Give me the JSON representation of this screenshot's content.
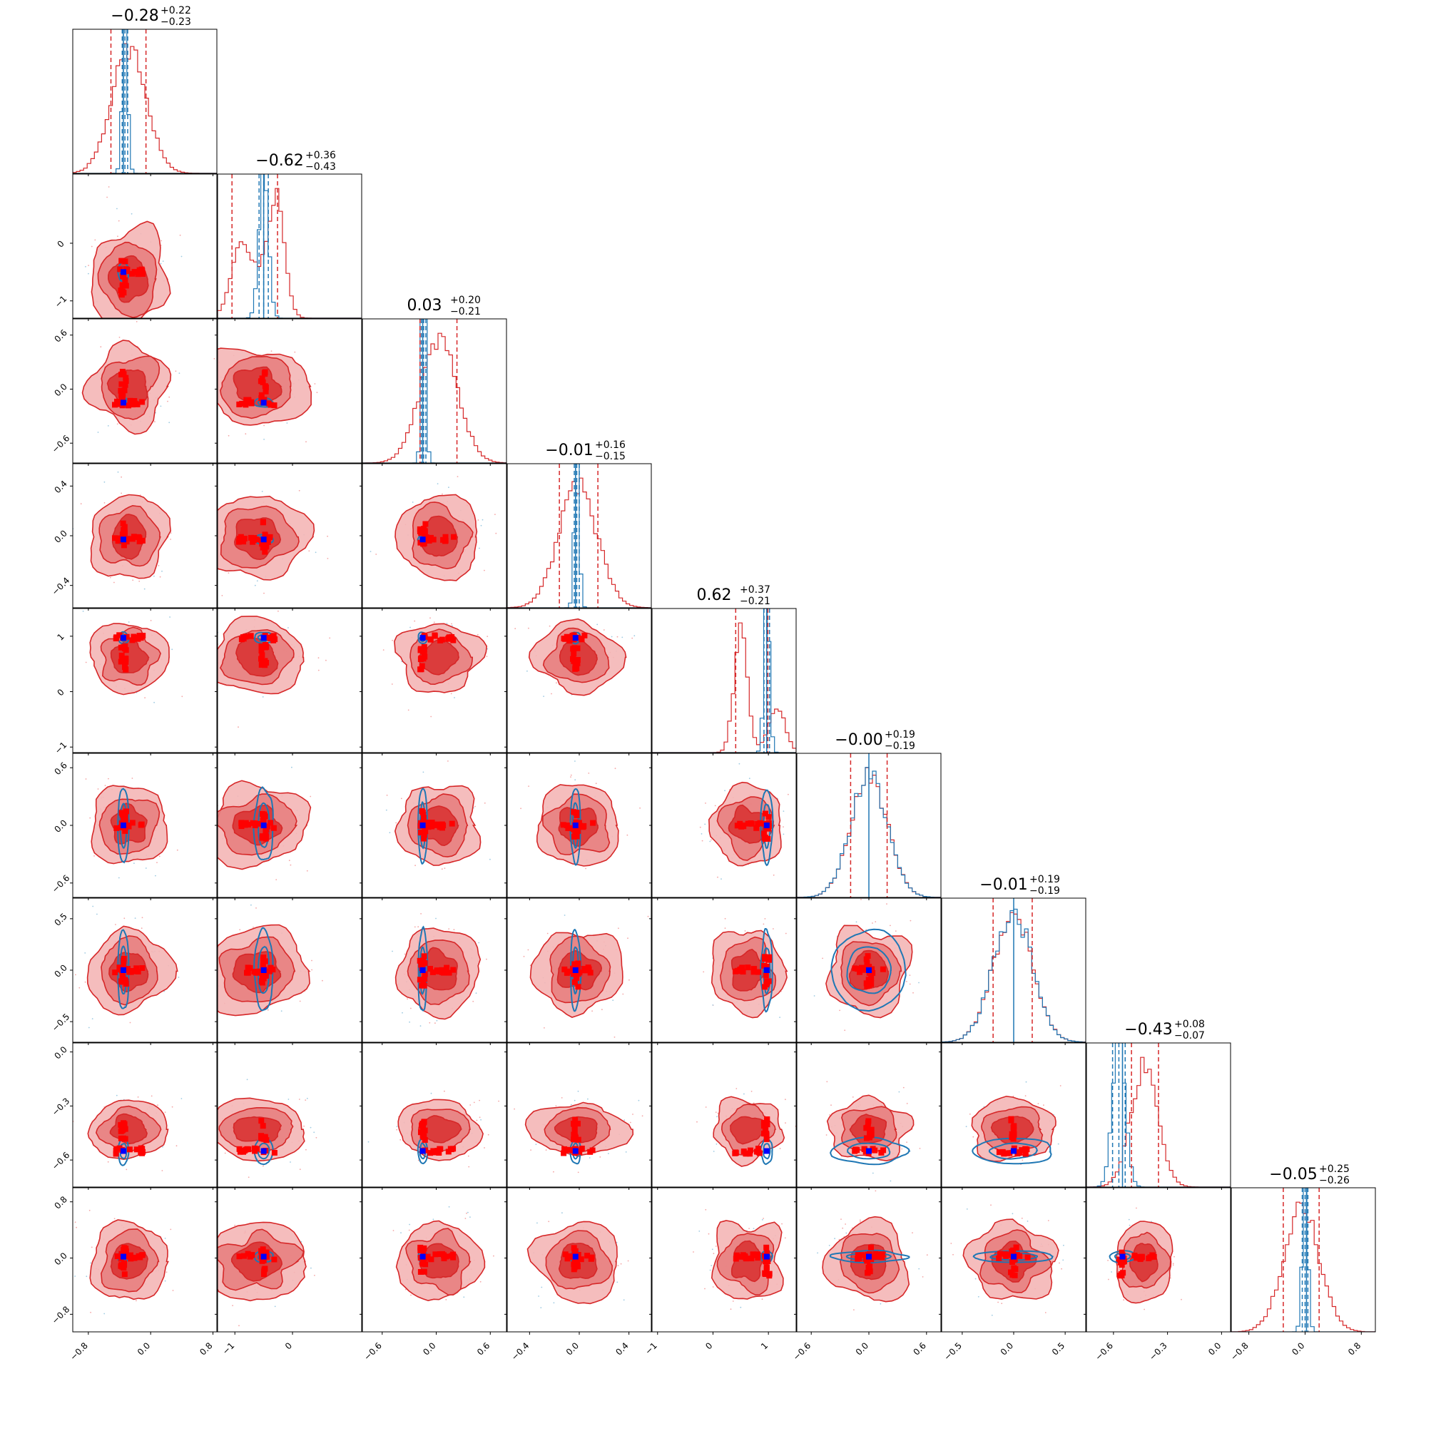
{
  "chart_data": {
    "type": "corner",
    "ndim": 9,
    "colors": {
      "wide": "#d62728",
      "narrow": "#1f77b4",
      "scatter_marker": "#ff0000",
      "truth_marker": "#0000ff"
    },
    "parameters": [
      {
        "title_main": "−0.28",
        "title_plus": "+0.22",
        "title_minus": "−0.23",
        "median": -0.28,
        "plus": 0.22,
        "minus": 0.23,
        "truth": -0.35,
        "narrow_median": -0.33,
        "narrow_sigma": 0.035,
        "range": [
          -1.0,
          0.85
        ],
        "ticks": [
          -0.8,
          0.0,
          0.8
        ],
        "tick_labels": [
          "−0.8",
          "0.0",
          "0.8"
        ]
      },
      {
        "title_main": "−0.62",
        "title_plus": "+0.36",
        "title_minus": "−0.43",
        "median": -0.62,
        "plus": 0.36,
        "minus": 0.43,
        "truth": -0.5,
        "narrow_median": -0.5,
        "narrow_sigma": 0.08,
        "range": [
          -1.3,
          1.2
        ],
        "ticks": [
          -1,
          0
        ],
        "tick_labels": [
          "−1",
          "0"
        ]
      },
      {
        "title_main": "0.03",
        "title_plus": "+0.20",
        "title_minus": "−0.21",
        "median": 0.03,
        "plus": 0.2,
        "minus": 0.21,
        "truth": -0.15,
        "narrow_median": -0.14,
        "narrow_sigma": 0.025,
        "range": [
          -0.82,
          0.78
        ],
        "ticks": [
          -0.6,
          0.0,
          0.6
        ],
        "tick_labels": [
          "−0.6",
          "0.0",
          "0.6"
        ]
      },
      {
        "title_main": "−0.01",
        "title_plus": "+0.16",
        "title_minus": "−0.15",
        "median": -0.01,
        "plus": 0.16,
        "minus": 0.15,
        "truth": -0.03,
        "narrow_median": -0.02,
        "narrow_sigma": 0.02,
        "range": [
          -0.58,
          0.58
        ],
        "ticks": [
          -0.4,
          0.0,
          0.4
        ],
        "tick_labels": [
          "−0.4",
          "0.0",
          "0.4"
        ]
      },
      {
        "title_main": "0.62",
        "title_plus": "+0.37",
        "title_minus": "−0.21",
        "median": 0.62,
        "plus": 0.37,
        "minus": 0.21,
        "truth": 0.97,
        "narrow_median": 0.97,
        "narrow_sigma": 0.05,
        "range": [
          -1.1,
          1.5
        ],
        "ticks": [
          -1,
          0,
          1
        ],
        "tick_labels": [
          "−1",
          "0",
          "1"
        ]
      },
      {
        "title_main": "−0.00",
        "title_plus": "+0.19",
        "title_minus": "−0.19",
        "median": 0.0,
        "plus": 0.19,
        "minus": 0.19,
        "truth": 0.0,
        "narrow_median": 0.0,
        "narrow_sigma": 0.19,
        "range": [
          -0.75,
          0.75
        ],
        "ticks": [
          -0.6,
          0.0,
          0.6
        ],
        "tick_labels": [
          "−0.6",
          "0.0",
          "0.6"
        ]
      },
      {
        "title_main": "−0.01",
        "title_plus": "+0.19",
        "title_minus": "−0.19",
        "median": -0.01,
        "plus": 0.19,
        "minus": 0.19,
        "truth": 0.0,
        "narrow_median": 0.0,
        "narrow_sigma": 0.19,
        "range": [
          -0.7,
          0.7
        ],
        "ticks": [
          -0.5,
          0.0,
          0.5
        ],
        "tick_labels": [
          "−0.5",
          "0.0",
          "0.5"
        ]
      },
      {
        "title_main": "−0.43",
        "title_plus": "+0.08",
        "title_minus": "−0.07",
        "median": -0.43,
        "plus": 0.08,
        "minus": 0.07,
        "truth": -0.55,
        "narrow_median": -0.57,
        "narrow_sigma": 0.035,
        "range": [
          -0.75,
          0.05
        ],
        "ticks": [
          -0.6,
          -0.3,
          0.0
        ],
        "tick_labels": [
          "−0.6",
          "−0.3",
          "0.0"
        ]
      },
      {
        "title_main": "−0.05",
        "title_plus": "+0.25",
        "title_minus": "−0.26",
        "median": -0.05,
        "plus": 0.25,
        "minus": 0.26,
        "truth": 0.02,
        "narrow_median": 0.0,
        "narrow_sigma": 0.04,
        "range": [
          -1.05,
          1.0
        ],
        "ticks": [
          -0.8,
          0.0,
          0.8
        ],
        "tick_labels": [
          "−0.8",
          "0.0",
          "0.8"
        ]
      }
    ]
  }
}
